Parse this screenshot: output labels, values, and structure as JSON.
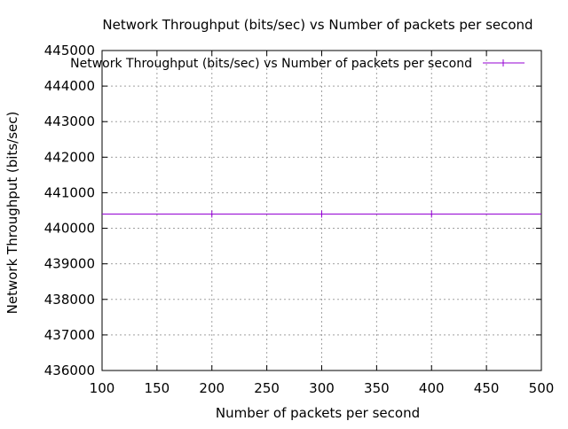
{
  "chart_data": {
    "type": "line",
    "title": "Network Throughput (bits/sec) vs Number of packets per second",
    "xlabel": "Number of packets per second",
    "ylabel": "Network Throughput (bits/sec)",
    "xlim": [
      100,
      500
    ],
    "ylim": [
      436000,
      445000
    ],
    "x_ticks": [
      100,
      150,
      200,
      250,
      300,
      350,
      400,
      450,
      500
    ],
    "y_ticks": [
      436000,
      437000,
      438000,
      439000,
      440000,
      441000,
      442000,
      443000,
      444000,
      445000
    ],
    "grid": true,
    "legend_position": "top-right",
    "series": [
      {
        "name": "Network Throughput (bits/sec) vs Number of packets per second",
        "color": "#9400d3",
        "x": [
          200,
          300,
          400
        ],
        "y": [
          440400,
          440400,
          440400
        ],
        "line_extends": [
          100,
          500
        ]
      }
    ]
  }
}
